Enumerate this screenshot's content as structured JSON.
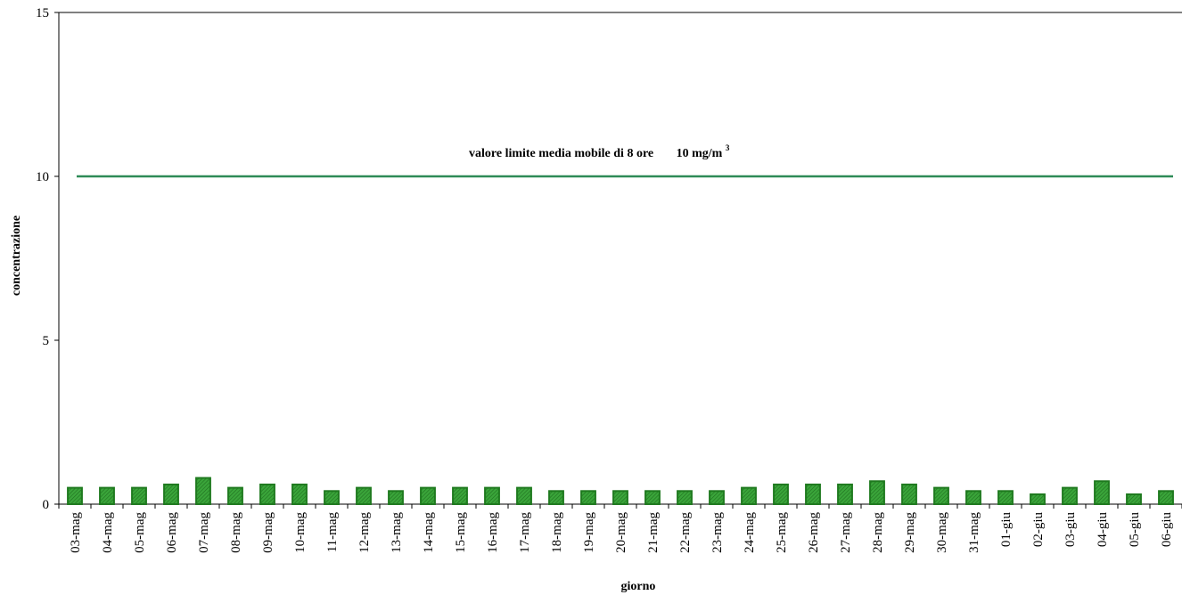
{
  "chart_data": {
    "type": "bar",
    "title": "",
    "xlabel": "giorno",
    "ylabel": "concentrazione",
    "ylim": [
      0,
      15
    ],
    "yticks": [
      0,
      5,
      10,
      15
    ],
    "grid": false,
    "categories": [
      "03-mag",
      "04-mag",
      "05-mag",
      "06-mag",
      "07-mag",
      "08-mag",
      "09-mag",
      "10-mag",
      "11-mag",
      "12-mag",
      "13-mag",
      "14-mag",
      "15-mag",
      "16-mag",
      "17-mag",
      "18-mag",
      "19-mag",
      "20-mag",
      "21-mag",
      "22-mag",
      "23-mag",
      "24-mag",
      "25-mag",
      "26-mag",
      "27-mag",
      "28-mag",
      "29-mag",
      "30-mag",
      "31-mag",
      "01-giu",
      "02-giu",
      "03-giu",
      "04-giu",
      "05-giu",
      "06-giu"
    ],
    "values": [
      0.5,
      0.5,
      0.5,
      0.6,
      0.8,
      0.5,
      0.6,
      0.6,
      0.4,
      0.5,
      0.4,
      0.5,
      0.5,
      0.5,
      0.5,
      0.4,
      0.4,
      0.4,
      0.4,
      0.4,
      0.4,
      0.5,
      0.6,
      0.6,
      0.6,
      0.7,
      0.6,
      0.5,
      0.4,
      0.4,
      0.3,
      0.5,
      0.7,
      0.3,
      0.4
    ],
    "bar_color": "#3aa53a",
    "bar_border": "#1f7a1f",
    "limit_line": {
      "value": 10,
      "color": "#2e8b57",
      "label": "valore limite media mobile di 8 ore",
      "label_value": "10 mg/m",
      "label_sup": "3"
    }
  }
}
